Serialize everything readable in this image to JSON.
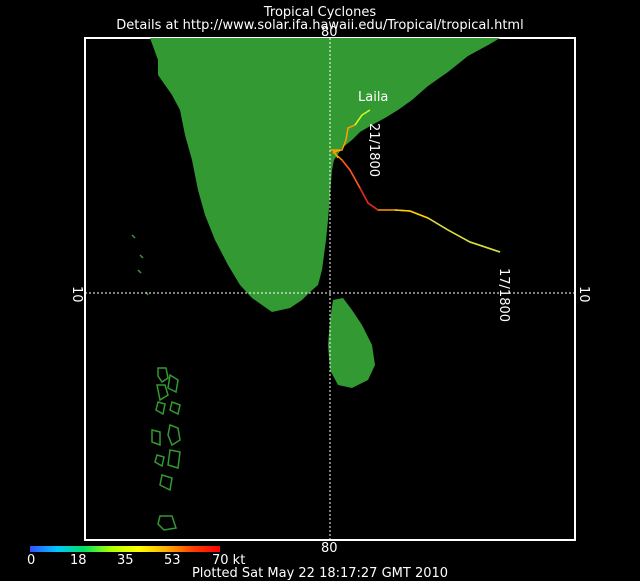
{
  "title": "Tropical Cyclones",
  "subtitle": "Details at http://www.solar.ifa.hawaii.edu/Tropical/tropical.html",
  "storm": {
    "name": "Laila",
    "times": [
      "21/1800",
      "17/1800"
    ]
  },
  "grid": {
    "lon_label": "80",
    "lat_label": "10"
  },
  "legend": {
    "ticks": [
      "0",
      "18",
      "35",
      "53",
      "70 kt"
    ],
    "colors": [
      "#3050ff",
      "#00c8ff",
      "#00e060",
      "#ffff00",
      "#ff8000",
      "#ff0000"
    ]
  },
  "footer": "Plotted Sat May 22 18:17:27 GMT 2010",
  "colors": {
    "land": "#339933",
    "background": "#000000",
    "frame": "#ffffff"
  }
}
